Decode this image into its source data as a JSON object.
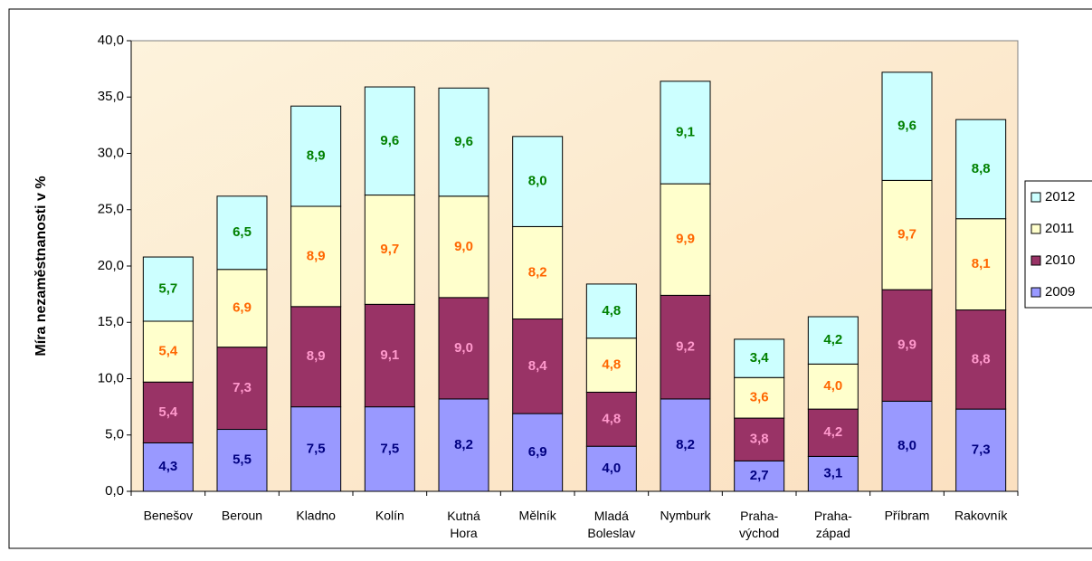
{
  "chart_data": {
    "type": "stacked_bar",
    "y_label": "Míra nezaměstnanosti v %",
    "categories": [
      "Benešov",
      "Beroun",
      "Kladno",
      "Kolín",
      "Kutná Hora",
      "Mělník",
      "Mladá Boleslav",
      "Nymburk",
      "Praha-východ",
      "Praha-západ",
      "Příbram",
      "Rakovník"
    ],
    "series": [
      {
        "name": "2009",
        "color": "#9999ff",
        "label_color": "#000080",
        "values": [
          4.3,
          5.5,
          7.5,
          7.5,
          8.2,
          6.9,
          4.0,
          8.2,
          2.7,
          3.1,
          8.0,
          7.3
        ],
        "value_labels": [
          "4,3",
          "5,5",
          "7,5",
          "7,5",
          "8,2",
          "6,9",
          "4,0",
          "8,2",
          "2,7",
          "3,1",
          "8,0",
          "7,3"
        ]
      },
      {
        "name": "2010",
        "color": "#993366",
        "label_color": "#ff99cc",
        "values": [
          5.4,
          7.3,
          8.9,
          9.1,
          9.0,
          8.4,
          4.8,
          9.2,
          3.8,
          4.2,
          9.9,
          8.8
        ],
        "value_labels": [
          "5,4",
          "7,3",
          "8,9",
          "9,1",
          "9,0",
          "8,4",
          "4,8",
          "9,2",
          "3,8",
          "4,2",
          "9,9",
          "8,8"
        ]
      },
      {
        "name": "2011",
        "color": "#ffffcc",
        "label_color": "#ff6600",
        "values": [
          5.4,
          6.9,
          8.9,
          9.7,
          9.0,
          8.2,
          4.8,
          9.9,
          3.6,
          4.0,
          9.7,
          8.1
        ],
        "value_labels": [
          "5,4",
          "6,9",
          "8,9",
          "9,7",
          "9,0",
          "8,2",
          "4,8",
          "9,9",
          "3,6",
          "4,0",
          "9,7",
          "8,1"
        ]
      },
      {
        "name": "2012",
        "color": "#ccffff",
        "label_color": "#008000",
        "values": [
          5.7,
          6.5,
          8.9,
          9.6,
          9.6,
          8.0,
          4.8,
          9.1,
          3.4,
          4.2,
          9.6,
          8.8
        ],
        "value_labels": [
          "5,7",
          "6,5",
          "8,9",
          "9,6",
          "9,6",
          "8,0",
          "4,8",
          "9,1",
          "3,4",
          "4,2",
          "9,6",
          "8,8"
        ]
      }
    ],
    "ylim": [
      0,
      40
    ],
    "yticks": [
      {
        "value": 0,
        "label": "0,0"
      },
      {
        "value": 5,
        "label": "5,0"
      },
      {
        "value": 10,
        "label": "10,0"
      },
      {
        "value": 15,
        "label": "15,0"
      },
      {
        "value": 20,
        "label": "20,0"
      },
      {
        "value": 25,
        "label": "25,0"
      },
      {
        "value": 30,
        "label": "30,0"
      },
      {
        "value": 35,
        "label": "35,0"
      },
      {
        "value": 40,
        "label": "40,0"
      }
    ],
    "legend": "right"
  }
}
